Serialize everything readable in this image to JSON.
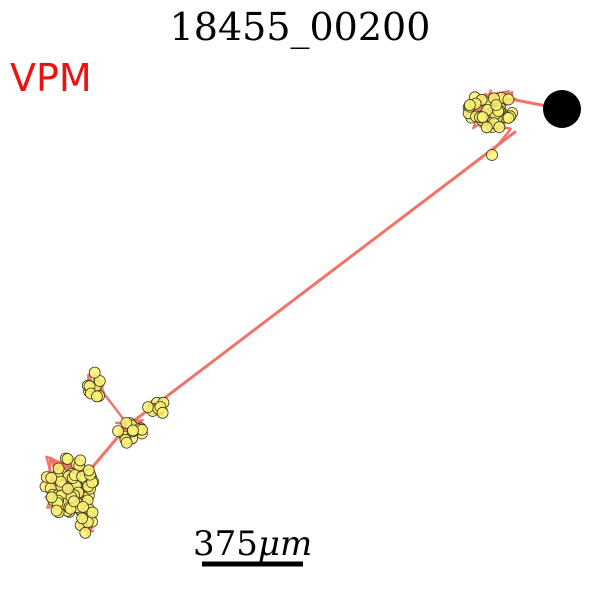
{
  "figure": {
    "title": "18455_00200",
    "region_label": "VPM",
    "scale_bar": {
      "value": "375",
      "unit": "μm"
    }
  },
  "colors": {
    "axon": "#f07468",
    "bouton_fill": "#fdf278",
    "bouton_stroke": "#3a3a1a",
    "soma": "#000000",
    "region_text": "#ee1111",
    "scalebar": "#000000"
  }
}
